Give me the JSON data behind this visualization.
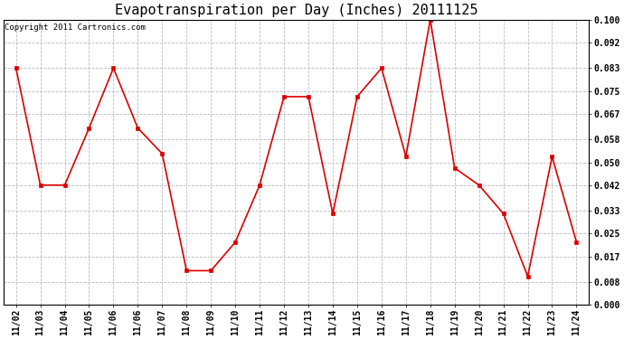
{
  "title": "Evapotranspiration per Day (Inches) 20111125",
  "copyright": "Copyright 2011 Cartronics.com",
  "x_labels": [
    "11/02",
    "11/03",
    "11/04",
    "11/05",
    "11/06",
    "11/06",
    "11/07",
    "11/08",
    "11/09",
    "11/10",
    "11/11",
    "11/12",
    "11/13",
    "11/14",
    "11/15",
    "11/16",
    "11/17",
    "11/18",
    "11/19",
    "11/20",
    "11/21",
    "11/22",
    "11/23",
    "11/24"
  ],
  "values": [
    0.083,
    0.042,
    0.042,
    0.062,
    0.083,
    0.062,
    0.053,
    0.012,
    0.012,
    0.022,
    0.042,
    0.073,
    0.073,
    0.032,
    0.073,
    0.083,
    0.052,
    0.1,
    0.048,
    0.042,
    0.032,
    0.01,
    0.052,
    0.022
  ],
  "line_color": "#dd0000",
  "marker": "s",
  "marker_size": 3,
  "ylim": [
    0.0,
    0.1
  ],
  "yticks": [
    0.0,
    0.008,
    0.017,
    0.025,
    0.033,
    0.042,
    0.05,
    0.058,
    0.067,
    0.075,
    0.083,
    0.092,
    0.1
  ],
  "bg_color": "#ffffff",
  "grid_color": "#bbbbbb",
  "title_fontsize": 11,
  "tick_fontsize": 7,
  "copyright_fontsize": 6.5
}
